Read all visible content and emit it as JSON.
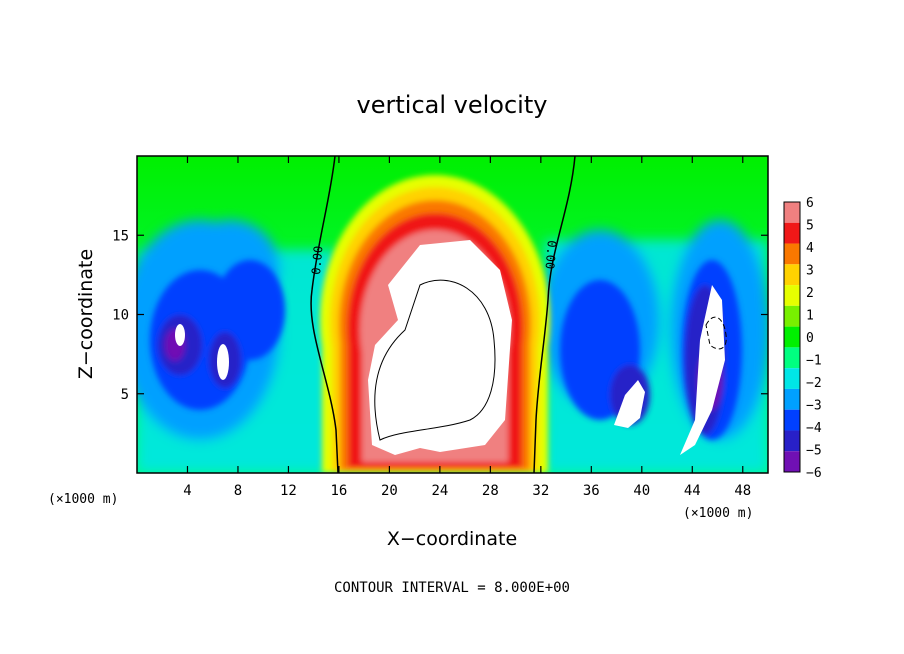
{
  "chart_data": {
    "type": "heatmap",
    "title": "vertical velocity",
    "xlabel": "X−coordinate",
    "ylabel": "Z−coordinate",
    "x_unit_left": "(×1000 m)",
    "x_unit_right": "(×1000 m)",
    "footnote": "CONTOUR INTERVAL = 8.000E+00",
    "xlim": [
      0,
      50
    ],
    "ylim": [
      0,
      20
    ],
    "x_ticks": [
      4,
      8,
      12,
      16,
      20,
      24,
      28,
      32,
      36,
      40,
      44,
      48
    ],
    "y_ticks": [
      5,
      10,
      15
    ],
    "colorbar": {
      "ticks": [
        6,
        5,
        4,
        3,
        2,
        1,
        0,
        -1,
        -2,
        -3,
        -4,
        -5,
        -6
      ],
      "range": [
        -6,
        6
      ],
      "colors": [
        "#f08080",
        "#f01818",
        "#fa7800",
        "#ffd200",
        "#e6ff00",
        "#78f000",
        "#00f000",
        "#00ff80",
        "#00e6e6",
        "#00a0ff",
        "#0040ff",
        "#2820c8",
        "#7010b4"
      ]
    },
    "contour_labels": [
      "0.00",
      "0.00"
    ],
    "contour_interval": 8,
    "features": [
      {
        "name": "updraft",
        "x_center": 25,
        "z_center": 9,
        "max_value": "> 6"
      },
      {
        "name": "downdraft-left",
        "x_center": 6,
        "z_center": 9,
        "min_value": "< -6"
      },
      {
        "name": "downdraft-right",
        "x_center": 44,
        "z_center": 8,
        "min_value": "< -6"
      }
    ]
  }
}
